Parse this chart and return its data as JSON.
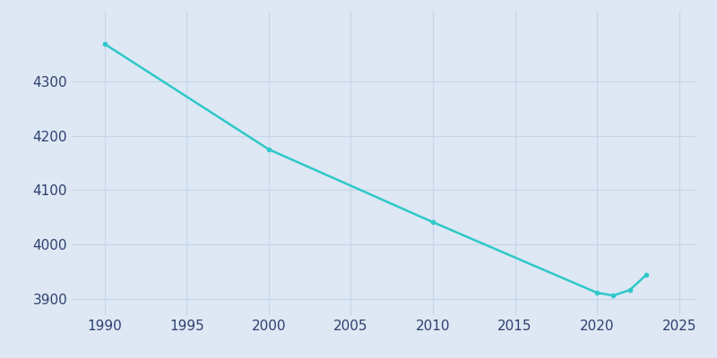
{
  "years": [
    1990,
    2000,
    2010,
    2020,
    2021,
    2022,
    2023
  ],
  "population": [
    4369,
    4175,
    4041,
    3911,
    3906,
    3916,
    3944
  ],
  "line_color": "#2ec8c8",
  "marker_color": "#2ec8c8",
  "background_color": "#dde8f4",
  "plot_bg_color": "#dde8f4",
  "grid_color": "#c5d5e8",
  "text_color": "#2e3f6e",
  "xlim": [
    1988,
    2026
  ],
  "ylim": [
    3870,
    4430
  ],
  "xticks": [
    1990,
    1995,
    2000,
    2005,
    2010,
    2015,
    2020,
    2025
  ],
  "yticks": [
    3900,
    4000,
    4100,
    4200,
    4300
  ],
  "figsize": [
    8.0,
    4.0
  ],
  "dpi": 100
}
